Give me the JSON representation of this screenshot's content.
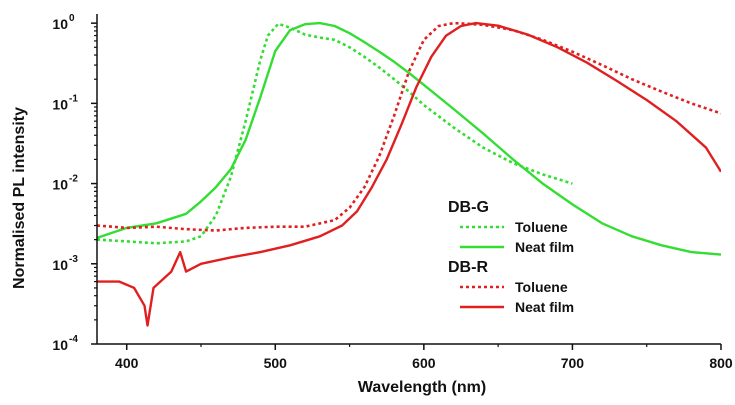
{
  "chart_data": {
    "type": "line",
    "title": "",
    "xlabel": "Wavelength (nm)",
    "ylabel": "Normalised PL intensity",
    "xlim": [
      380,
      800
    ],
    "ylim": [
      0.0001,
      1.3
    ],
    "yscale": "log",
    "grid": false,
    "legend_position": "right",
    "x_ticks": [
      400,
      500,
      600,
      700,
      800
    ],
    "y_ticks": [
      {
        "value": 0.0001,
        "mantissa": "10",
        "exponent": "-4"
      },
      {
        "value": 0.001,
        "mantissa": "10",
        "exponent": "-3"
      },
      {
        "value": 0.01,
        "mantissa": "10",
        "exponent": "-2"
      },
      {
        "value": 0.1,
        "mantissa": "10",
        "exponent": "-1"
      },
      {
        "value": 1,
        "mantissa": "10",
        "exponent": "0"
      }
    ],
    "legend_groups": [
      {
        "title": "DB-G",
        "entries": [
          {
            "name": "Toluene",
            "color": "#33dd33",
            "dash": "dotted"
          },
          {
            "name": "Neat film",
            "color": "#33dd33",
            "dash": "solid"
          }
        ]
      },
      {
        "title": "DB-R",
        "entries": [
          {
            "name": "Toluene",
            "color": "#e02020",
            "dash": "dotted"
          },
          {
            "name": "Neat film",
            "color": "#e02020",
            "dash": "solid"
          }
        ]
      }
    ],
    "series": [
      {
        "name": "Toluene",
        "group": "DB-G",
        "color": "#33dd33",
        "dash": "dotted",
        "points": [
          [
            380,
            0.002
          ],
          [
            400,
            0.0019
          ],
          [
            420,
            0.0018
          ],
          [
            440,
            0.0019
          ],
          [
            450,
            0.0022
          ],
          [
            460,
            0.004
          ],
          [
            470,
            0.012
          ],
          [
            480,
            0.06
          ],
          [
            490,
            0.35
          ],
          [
            495,
            0.7
          ],
          [
            502,
            0.98
          ],
          [
            510,
            0.88
          ],
          [
            520,
            0.72
          ],
          [
            530,
            0.66
          ],
          [
            540,
            0.62
          ],
          [
            550,
            0.5
          ],
          [
            560,
            0.38
          ],
          [
            570,
            0.28
          ],
          [
            580,
            0.2
          ],
          [
            590,
            0.14
          ],
          [
            600,
            0.095
          ],
          [
            620,
            0.05
          ],
          [
            640,
            0.028
          ],
          [
            660,
            0.018
          ],
          [
            680,
            0.013
          ],
          [
            700,
            0.01
          ]
        ]
      },
      {
        "name": "Neat film",
        "group": "DB-G",
        "color": "#33dd33",
        "dash": "solid",
        "points": [
          [
            380,
            0.0021
          ],
          [
            400,
            0.0028
          ],
          [
            420,
            0.0032
          ],
          [
            440,
            0.0042
          ],
          [
            450,
            0.006
          ],
          [
            460,
            0.009
          ],
          [
            470,
            0.015
          ],
          [
            480,
            0.035
          ],
          [
            490,
            0.12
          ],
          [
            500,
            0.45
          ],
          [
            510,
            0.82
          ],
          [
            520,
            0.97
          ],
          [
            530,
            1.0
          ],
          [
            540,
            0.92
          ],
          [
            550,
            0.75
          ],
          [
            560,
            0.58
          ],
          [
            570,
            0.44
          ],
          [
            580,
            0.33
          ],
          [
            590,
            0.24
          ],
          [
            600,
            0.17
          ],
          [
            620,
            0.085
          ],
          [
            640,
            0.042
          ],
          [
            660,
            0.02
          ],
          [
            680,
            0.01
          ],
          [
            700,
            0.0055
          ],
          [
            720,
            0.0032
          ],
          [
            740,
            0.0022
          ],
          [
            760,
            0.0017
          ],
          [
            780,
            0.0014
          ],
          [
            800,
            0.0013
          ]
        ]
      },
      {
        "name": "Toluene",
        "group": "DB-R",
        "color": "#e02020",
        "dash": "dotted",
        "points": [
          [
            380,
            0.003
          ],
          [
            400,
            0.0028
          ],
          [
            420,
            0.0029
          ],
          [
            440,
            0.0027
          ],
          [
            460,
            0.0026
          ],
          [
            480,
            0.0028
          ],
          [
            500,
            0.0029
          ],
          [
            520,
            0.0029
          ],
          [
            540,
            0.0035
          ],
          [
            550,
            0.005
          ],
          [
            560,
            0.009
          ],
          [
            570,
            0.022
          ],
          [
            580,
            0.07
          ],
          [
            590,
            0.25
          ],
          [
            600,
            0.62
          ],
          [
            610,
            0.92
          ],
          [
            620,
            1.0
          ],
          [
            630,
            0.98
          ],
          [
            640,
            0.95
          ],
          [
            660,
            0.82
          ],
          [
            680,
            0.62
          ],
          [
            700,
            0.44
          ],
          [
            720,
            0.3
          ],
          [
            740,
            0.2
          ],
          [
            760,
            0.14
          ],
          [
            780,
            0.1
          ],
          [
            800,
            0.075
          ]
        ]
      },
      {
        "name": "Neat film",
        "group": "DB-R",
        "color": "#e02020",
        "dash": "solid",
        "points": [
          [
            380,
            0.0006
          ],
          [
            395,
            0.0006
          ],
          [
            405,
            0.0005
          ],
          [
            412,
            0.0003
          ],
          [
            414,
            0.00017
          ],
          [
            418,
            0.0005
          ],
          [
            430,
            0.0008
          ],
          [
            436,
            0.0014
          ],
          [
            440,
            0.0008
          ],
          [
            450,
            0.001
          ],
          [
            470,
            0.0012
          ],
          [
            490,
            0.0014
          ],
          [
            510,
            0.0017
          ],
          [
            530,
            0.0022
          ],
          [
            545,
            0.003
          ],
          [
            555,
            0.0045
          ],
          [
            565,
            0.009
          ],
          [
            575,
            0.02
          ],
          [
            585,
            0.055
          ],
          [
            595,
            0.16
          ],
          [
            605,
            0.38
          ],
          [
            615,
            0.7
          ],
          [
            625,
            0.92
          ],
          [
            635,
            1.0
          ],
          [
            650,
            0.93
          ],
          [
            670,
            0.72
          ],
          [
            690,
            0.5
          ],
          [
            710,
            0.32
          ],
          [
            730,
            0.19
          ],
          [
            750,
            0.11
          ],
          [
            770,
            0.06
          ],
          [
            790,
            0.028
          ],
          [
            800,
            0.014
          ]
        ]
      }
    ]
  }
}
